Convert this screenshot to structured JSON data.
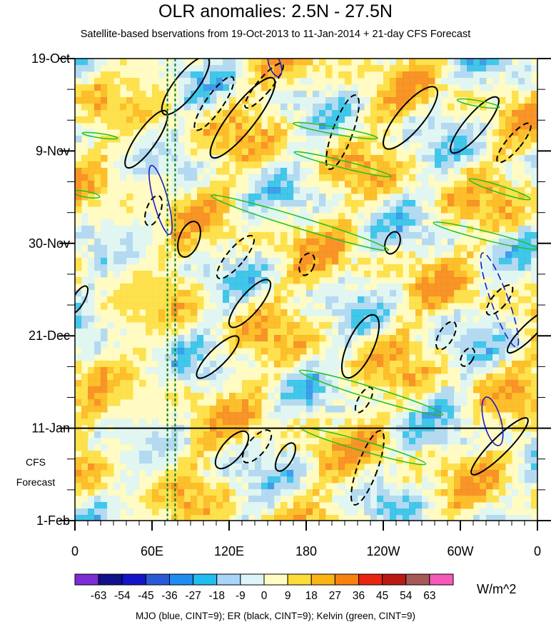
{
  "chart_data": {
    "type": "heatmap",
    "title": "OLR anomalies: 2.5N - 27.5N",
    "subtitle": "Satellite-based bservations from 19-Oct-2013 to 11-Jan-2014 + 21-day CFS Forecast",
    "x_labels": [
      "0",
      "60E",
      "120E",
      "180",
      "120W",
      "60W",
      "0"
    ],
    "x_lon": [
      0,
      60,
      120,
      180,
      240,
      300,
      360
    ],
    "xlim": [
      0,
      360
    ],
    "y_labels": [
      "19-Oct",
      "9-Nov",
      "30-Nov",
      "21-Dec",
      "11-Jan",
      "1-Feb"
    ],
    "y_days": [
      0,
      21,
      42,
      63,
      84,
      105
    ],
    "ylim": [
      0,
      105
    ],
    "observation_end": "11-Jan",
    "observation_end_day": 84,
    "forecast_label_line1": "CFS",
    "forecast_label_line2": "Forecast",
    "dashed_lines_lon": [
      72,
      78
    ],
    "colorbar": {
      "levels": [
        "-63",
        "-54",
        "-45",
        "-36",
        "-27",
        "-18",
        "-9",
        "0",
        "9",
        "18",
        "27",
        "36",
        "45",
        "54",
        "63"
      ],
      "colors": [
        "#7d2dd3",
        "#11118a",
        "#1515c8",
        "#2a5ad8",
        "#1e8cf0",
        "#22bdf0",
        "#a8d4f8",
        "#dcf4f8",
        "#fffbc2",
        "#fddc3a",
        "#fcb413",
        "#f7820e",
        "#e82412",
        "#b91a13",
        "#a55a57",
        "#f65ab8"
      ],
      "units": "W/m^2"
    },
    "contour_note": "MJO (blue, CINT=9); ER (black, CINT=9); Kelvin (green, CINT=9)",
    "series_colors": {
      "mjo": "#1c1cc4",
      "er": "#000000",
      "kelvin": "#1ec21e"
    }
  }
}
